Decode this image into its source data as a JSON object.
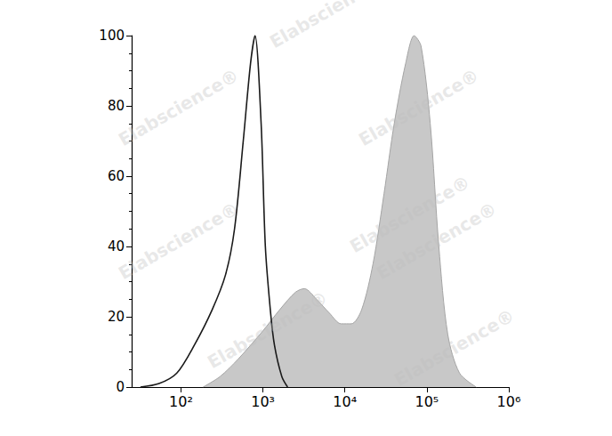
{
  "chart_data": {
    "type": "line",
    "log": "x",
    "grid": false,
    "watermark": "Elabscience®",
    "xlim": [
      25,
      1000000
    ],
    "xticks": [
      {
        "value": 100,
        "label": "10²"
      },
      {
        "value": 1000,
        "label": "10³"
      },
      {
        "value": 10000,
        "label": "10⁴"
      },
      {
        "value": 100000,
        "label": "10⁵"
      },
      {
        "value": 1000000,
        "label": "10⁶"
      }
    ],
    "ylim": [
      0,
      100
    ],
    "yticks": [
      0,
      20,
      40,
      60,
      80,
      100
    ],
    "series": [
      {
        "type": "area",
        "color": "#c8c8c8",
        "x": [
          186,
          300,
          500,
          1000,
          1600,
          2500,
          3200,
          4500,
          6500,
          9000,
          12000,
          16000,
          22000,
          30000,
          40000,
          55000,
          70000,
          85000,
          110000,
          140000,
          180000,
          250000,
          400000
        ],
        "values": [
          0,
          3,
          8,
          16,
          22,
          27,
          28,
          25,
          21,
          18,
          18,
          22,
          35,
          55,
          75,
          92,
          100,
          97,
          75,
          40,
          15,
          4,
          0
        ]
      },
      {
        "type": "line",
        "color": "#1a1a1a",
        "x": [
          32,
          54,
          89,
          146,
          240,
          350,
          450,
          575,
          705,
          800,
          950,
          1070,
          1230,
          1380,
          1700,
          2000
        ],
        "values": [
          0,
          1,
          4,
          12,
          22,
          32,
          45,
          70,
          92,
          100,
          75,
          40,
          22,
          12,
          3,
          0
        ]
      }
    ]
  }
}
